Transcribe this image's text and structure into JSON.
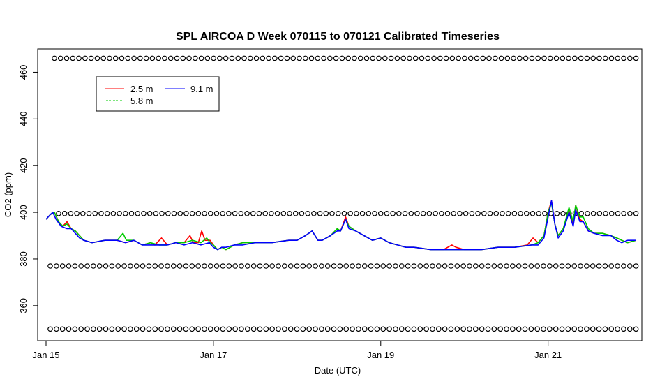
{
  "chart_data": {
    "type": "line",
    "title": "SPL AIRCOA D  Week 070115 to 070121  Calibrated Timeseries",
    "xlabel": "Date (UTC)",
    "ylabel": "CO2 (ppm)",
    "xlim": [
      -0.1,
      7.12
    ],
    "ylim": [
      345,
      470
    ],
    "x_ticks": [
      {
        "value": 0,
        "label": "Jan 15"
      },
      {
        "value": 2,
        "label": "Jan 17"
      },
      {
        "value": 4,
        "label": "Jan 19"
      },
      {
        "value": 6,
        "label": "Jan 21"
      }
    ],
    "y_ticks": [
      {
        "value": 360,
        "label": "360"
      },
      {
        "value": 380,
        "label": "380"
      },
      {
        "value": 400,
        "label": "400"
      },
      {
        "value": 420,
        "label": "420"
      },
      {
        "value": 440,
        "label": "440"
      },
      {
        "value": 460,
        "label": "460"
      }
    ],
    "grid": false,
    "legend": {
      "position": "top-left",
      "entries": [
        {
          "name": "2.5 m",
          "color": "#ff0000"
        },
        {
          "name": "5.8 m",
          "color": "#00cc00"
        },
        {
          "name": "9.1 m",
          "color": "#0000ff"
        }
      ]
    },
    "series": [
      {
        "name": "2.5 m",
        "color": "#ff0000",
        "points": [
          [
            0.0,
            397
          ],
          [
            0.05,
            399
          ],
          [
            0.1,
            400
          ],
          [
            0.15,
            396
          ],
          [
            0.2,
            394
          ],
          [
            0.25,
            396
          ],
          [
            0.3,
            393
          ],
          [
            0.35,
            392
          ],
          [
            0.4,
            390
          ],
          [
            0.45,
            388
          ],
          [
            0.55,
            387
          ],
          [
            0.7,
            388
          ],
          [
            0.85,
            388
          ],
          [
            0.95,
            387
          ],
          [
            1.05,
            388
          ],
          [
            1.15,
            386
          ],
          [
            1.25,
            387
          ],
          [
            1.3,
            386
          ],
          [
            1.38,
            389
          ],
          [
            1.45,
            386
          ],
          [
            1.55,
            387
          ],
          [
            1.65,
            387
          ],
          [
            1.72,
            390
          ],
          [
            1.76,
            387
          ],
          [
            1.82,
            387
          ],
          [
            1.86,
            392
          ],
          [
            1.9,
            388
          ],
          [
            1.96,
            388
          ],
          [
            2.0,
            386
          ],
          [
            2.05,
            384
          ],
          [
            2.1,
            385
          ],
          [
            2.15,
            384
          ],
          [
            2.25,
            386
          ],
          [
            2.35,
            387
          ],
          [
            2.5,
            387
          ],
          [
            2.7,
            387
          ],
          [
            2.9,
            388
          ],
          [
            3.0,
            388
          ],
          [
            3.1,
            390
          ],
          [
            3.18,
            392
          ],
          [
            3.25,
            388
          ],
          [
            3.3,
            388
          ],
          [
            3.4,
            390
          ],
          [
            3.48,
            393
          ],
          [
            3.52,
            392
          ],
          [
            3.58,
            398
          ],
          [
            3.62,
            394
          ],
          [
            3.7,
            392
          ],
          [
            3.8,
            390
          ],
          [
            3.9,
            388
          ],
          [
            4.0,
            389
          ],
          [
            4.1,
            387
          ],
          [
            4.2,
            386
          ],
          [
            4.3,
            385
          ],
          [
            4.4,
            385
          ],
          [
            4.6,
            384
          ],
          [
            4.75,
            384
          ],
          [
            4.85,
            386
          ],
          [
            4.9,
            385
          ],
          [
            5.0,
            384
          ],
          [
            5.2,
            384
          ],
          [
            5.4,
            385
          ],
          [
            5.6,
            385
          ],
          [
            5.75,
            386
          ],
          [
            5.82,
            389
          ],
          [
            5.88,
            387
          ],
          [
            5.95,
            390
          ],
          [
            6.0,
            400
          ],
          [
            6.04,
            405
          ],
          [
            6.08,
            395
          ],
          [
            6.12,
            390
          ],
          [
            6.18,
            393
          ],
          [
            6.25,
            401
          ],
          [
            6.3,
            395
          ],
          [
            6.33,
            403
          ],
          [
            6.38,
            397
          ],
          [
            6.42,
            396
          ],
          [
            6.48,
            392
          ],
          [
            6.55,
            391
          ],
          [
            6.65,
            391
          ],
          [
            6.75,
            390
          ],
          [
            6.82,
            389
          ],
          [
            6.88,
            388
          ],
          [
            6.95,
            387
          ],
          [
            7.05,
            388
          ]
        ]
      },
      {
        "name": "5.8 m",
        "color": "#00cc00",
        "points": [
          [
            0.0,
            397
          ],
          [
            0.05,
            399
          ],
          [
            0.1,
            400
          ],
          [
            0.15,
            396
          ],
          [
            0.2,
            394
          ],
          [
            0.25,
            395
          ],
          [
            0.3,
            393
          ],
          [
            0.35,
            392
          ],
          [
            0.4,
            390
          ],
          [
            0.45,
            388
          ],
          [
            0.55,
            387
          ],
          [
            0.7,
            388
          ],
          [
            0.85,
            388
          ],
          [
            0.92,
            391
          ],
          [
            0.96,
            388
          ],
          [
            1.05,
            388
          ],
          [
            1.15,
            386
          ],
          [
            1.25,
            387
          ],
          [
            1.35,
            386
          ],
          [
            1.45,
            386
          ],
          [
            1.55,
            387
          ],
          [
            1.65,
            387
          ],
          [
            1.75,
            388
          ],
          [
            1.85,
            387
          ],
          [
            1.92,
            389
          ],
          [
            1.96,
            387
          ],
          [
            2.0,
            386
          ],
          [
            2.05,
            384
          ],
          [
            2.1,
            385
          ],
          [
            2.15,
            384
          ],
          [
            2.25,
            386
          ],
          [
            2.35,
            387
          ],
          [
            2.5,
            387
          ],
          [
            2.7,
            387
          ],
          [
            2.9,
            388
          ],
          [
            3.0,
            388
          ],
          [
            3.1,
            390
          ],
          [
            3.18,
            392
          ],
          [
            3.25,
            388
          ],
          [
            3.3,
            388
          ],
          [
            3.4,
            390
          ],
          [
            3.48,
            393
          ],
          [
            3.52,
            392
          ],
          [
            3.58,
            397
          ],
          [
            3.62,
            394
          ],
          [
            3.7,
            392
          ],
          [
            3.8,
            390
          ],
          [
            3.9,
            388
          ],
          [
            4.0,
            389
          ],
          [
            4.1,
            387
          ],
          [
            4.2,
            386
          ],
          [
            4.3,
            385
          ],
          [
            4.4,
            385
          ],
          [
            4.6,
            384
          ],
          [
            4.8,
            384
          ],
          [
            5.0,
            384
          ],
          [
            5.2,
            384
          ],
          [
            5.4,
            385
          ],
          [
            5.6,
            385
          ],
          [
            5.8,
            386
          ],
          [
            5.88,
            387
          ],
          [
            5.95,
            390
          ],
          [
            6.0,
            400
          ],
          [
            6.04,
            404
          ],
          [
            6.08,
            395
          ],
          [
            6.12,
            390
          ],
          [
            6.18,
            393
          ],
          [
            6.25,
            402
          ],
          [
            6.3,
            396
          ],
          [
            6.33,
            403
          ],
          [
            6.38,
            398
          ],
          [
            6.42,
            398
          ],
          [
            6.48,
            393
          ],
          [
            6.55,
            391
          ],
          [
            6.65,
            391
          ],
          [
            6.75,
            390
          ],
          [
            6.82,
            389
          ],
          [
            6.88,
            388
          ],
          [
            6.95,
            387
          ],
          [
            7.05,
            388
          ]
        ]
      },
      {
        "name": "9.1 m",
        "color": "#0000ff",
        "points": [
          [
            0.0,
            397
          ],
          [
            0.05,
            399
          ],
          [
            0.08,
            400
          ],
          [
            0.12,
            397
          ],
          [
            0.18,
            394
          ],
          [
            0.25,
            393
          ],
          [
            0.3,
            393
          ],
          [
            0.35,
            391
          ],
          [
            0.4,
            389
          ],
          [
            0.45,
            388
          ],
          [
            0.55,
            387
          ],
          [
            0.7,
            388
          ],
          [
            0.85,
            388
          ],
          [
            0.95,
            387
          ],
          [
            1.05,
            388
          ],
          [
            1.15,
            386
          ],
          [
            1.25,
            386
          ],
          [
            1.35,
            386
          ],
          [
            1.45,
            386
          ],
          [
            1.55,
            387
          ],
          [
            1.65,
            386
          ],
          [
            1.75,
            387
          ],
          [
            1.85,
            386
          ],
          [
            1.95,
            387
          ],
          [
            2.0,
            385
          ],
          [
            2.05,
            384
          ],
          [
            2.1,
            385
          ],
          [
            2.15,
            385
          ],
          [
            2.25,
            386
          ],
          [
            2.35,
            386
          ],
          [
            2.5,
            387
          ],
          [
            2.7,
            387
          ],
          [
            2.9,
            388
          ],
          [
            3.0,
            388
          ],
          [
            3.1,
            390
          ],
          [
            3.18,
            392
          ],
          [
            3.25,
            388
          ],
          [
            3.3,
            388
          ],
          [
            3.4,
            390
          ],
          [
            3.48,
            392
          ],
          [
            3.52,
            392
          ],
          [
            3.58,
            397
          ],
          [
            3.62,
            393
          ],
          [
            3.7,
            392
          ],
          [
            3.8,
            390
          ],
          [
            3.9,
            388
          ],
          [
            4.0,
            389
          ],
          [
            4.1,
            387
          ],
          [
            4.2,
            386
          ],
          [
            4.3,
            385
          ],
          [
            4.4,
            385
          ],
          [
            4.6,
            384
          ],
          [
            4.8,
            384
          ],
          [
            5.0,
            384
          ],
          [
            5.2,
            384
          ],
          [
            5.4,
            385
          ],
          [
            5.6,
            385
          ],
          [
            5.8,
            386
          ],
          [
            5.88,
            386
          ],
          [
            5.95,
            389
          ],
          [
            6.0,
            398
          ],
          [
            6.04,
            405
          ],
          [
            6.08,
            395
          ],
          [
            6.12,
            389
          ],
          [
            6.18,
            392
          ],
          [
            6.25,
            400
          ],
          [
            6.3,
            394
          ],
          [
            6.33,
            401
          ],
          [
            6.38,
            396
          ],
          [
            6.42,
            396
          ],
          [
            6.48,
            392
          ],
          [
            6.55,
            391
          ],
          [
            6.65,
            390
          ],
          [
            6.75,
            390
          ],
          [
            6.82,
            388
          ],
          [
            6.88,
            387
          ],
          [
            6.95,
            388
          ],
          [
            7.05,
            388
          ]
        ]
      }
    ],
    "reference_rows": [
      {
        "y": 466,
        "marker": "o",
        "x_start": 0.1,
        "x_end": 7.05,
        "count": 96
      },
      {
        "y": 399.5,
        "marker": "o",
        "x_start": 0.15,
        "x_end": 7.05,
        "count": 96
      },
      {
        "y": 377,
        "marker": "o",
        "x_start": 0.05,
        "x_end": 7.05,
        "count": 96
      },
      {
        "y": 350,
        "marker": "o",
        "x_start": 0.05,
        "x_end": 7.05,
        "count": 96
      }
    ]
  }
}
